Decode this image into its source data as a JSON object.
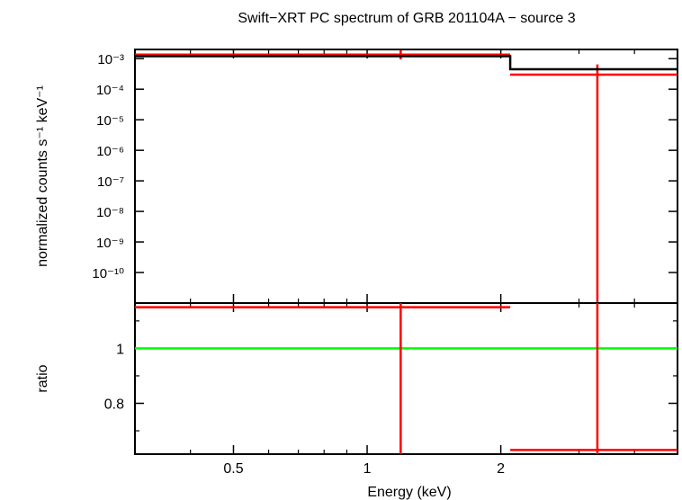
{
  "chart_data": {
    "type": "scatter",
    "title": "Swift−XRT PC spectrum of GRB 201104A − source 3",
    "xlabel": "Energy (keV)",
    "x_scale": "log",
    "xlim": [
      0.3,
      5.0
    ],
    "x_ticks": [
      {
        "value": 0.5,
        "label": "0.5"
      },
      {
        "value": 1,
        "label": "1"
      },
      {
        "value": 2,
        "label": "2"
      }
    ],
    "panels": [
      {
        "name": "spectrum",
        "ylabel": "normalized counts s⁻¹ keV⁻¹",
        "y_scale": "log",
        "ylim": [
          1e-11,
          0.002
        ],
        "y_ticks": [
          {
            "value": 0.001,
            "label": "10⁻³"
          },
          {
            "value": 0.0001,
            "label": "10⁻⁴"
          },
          {
            "value": 1e-05,
            "label": "10⁻⁵"
          },
          {
            "value": 1e-06,
            "label": "10⁻⁶"
          },
          {
            "value": 1e-07,
            "label": "10⁻⁷"
          },
          {
            "value": 1e-08,
            "label": "10⁻⁸"
          },
          {
            "value": 1e-09,
            "label": "10⁻⁹"
          },
          {
            "value": 1e-10,
            "label": "10⁻¹⁰"
          }
        ],
        "series": [
          {
            "role": "data",
            "color": "#ff0000",
            "points": [
              {
                "x": 1.19,
                "xlo": 0.3,
                "xhi": 2.1,
                "y": 0.00135,
                "ylo": 0.00095,
                "yhi": 0.0019
              },
              {
                "x": 3.3,
                "xlo": 2.1,
                "xhi": 5.0,
                "y": 0.0003,
                "ylo": 1e-11,
                "yhi": 0.00065
              }
            ]
          },
          {
            "role": "model",
            "color": "#000000",
            "steps": [
              {
                "xlo": 0.3,
                "xhi": 2.1,
                "y": 0.0012
              },
              {
                "xlo": 2.1,
                "xhi": 5.0,
                "y": 0.00045
              }
            ]
          }
        ]
      },
      {
        "name": "ratio",
        "ylabel": "ratio",
        "y_scale": "linear",
        "ylim": [
          0.615,
          1.165
        ],
        "y_ticks": [
          {
            "value": 0.8,
            "label": "0.8"
          },
          {
            "value": 1,
            "label": "1"
          }
        ],
        "reference_line": {
          "y": 1,
          "color": "#00ff00"
        },
        "series": [
          {
            "role": "ratio",
            "color": "#ff0000",
            "points": [
              {
                "x": 1.19,
                "xlo": 0.3,
                "xhi": 2.1,
                "y": 1.15,
                "ylo": 0.615,
                "yhi": 1.165
              },
              {
                "x": 3.3,
                "xlo": 2.1,
                "xhi": 5.0,
                "y": 0.63,
                "ylo": 0.615,
                "yhi": 1.165
              }
            ]
          }
        ]
      }
    ]
  }
}
